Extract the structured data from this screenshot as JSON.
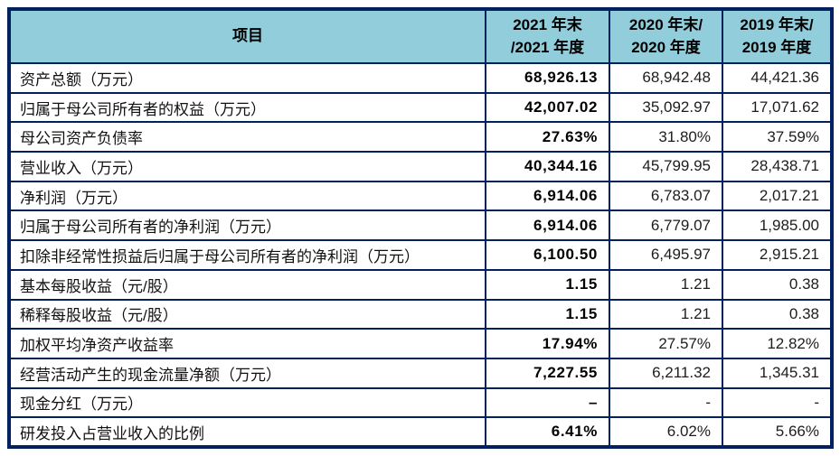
{
  "table": {
    "headers": {
      "item": "项目",
      "col2021": {
        "line1": "2021 年末",
        "line2": "/2021 年度"
      },
      "col2020": {
        "line1": "2020 年末/",
        "line2": "2020 年度"
      },
      "col2019": {
        "line1": "2019 年末/",
        "line2": "2019 年度"
      }
    },
    "rows": [
      {
        "item": "资产总额（万元）",
        "y2021": "68,926.13",
        "y2020": "68,942.48",
        "y2019": "44,421.36"
      },
      {
        "item": "归属于母公司所有者的权益（万元）",
        "y2021": "42,007.02",
        "y2020": "35,092.97",
        "y2019": "17,071.62"
      },
      {
        "item": "母公司资产负债率",
        "y2021": "27.63%",
        "y2020": "31.80%",
        "y2019": "37.59%"
      },
      {
        "item": "营业收入（万元）",
        "y2021": "40,344.16",
        "y2020": "45,799.95",
        "y2019": "28,438.71"
      },
      {
        "item": "净利润（万元）",
        "y2021": "6,914.06",
        "y2020": "6,783.07",
        "y2019": "2,017.21"
      },
      {
        "item": "归属于母公司所有者的净利润（万元）",
        "y2021": "6,914.06",
        "y2020": "6,779.07",
        "y2019": "1,985.00"
      },
      {
        "item": "扣除非经常性损益后归属于母公司所有者的净利润（万元）",
        "y2021": "6,100.50",
        "y2020": "6,495.97",
        "y2019": "2,915.21"
      },
      {
        "item": "基本每股收益（元/股）",
        "y2021": "1.15",
        "y2020": "1.21",
        "y2019": "0.38"
      },
      {
        "item": "稀释每股收益（元/股）",
        "y2021": "1.15",
        "y2020": "1.21",
        "y2019": "0.38"
      },
      {
        "item": "加权平均净资产收益率",
        "y2021": "17.94%",
        "y2020": "27.57%",
        "y2019": "12.82%"
      },
      {
        "item": "经营活动产生的现金流量净额（万元）",
        "y2021": "7,227.55",
        "y2020": "6,211.32",
        "y2019": "1,345.31"
      },
      {
        "item": "现金分红（万元）",
        "y2021": "–",
        "y2020": "-",
        "y2019": "-"
      },
      {
        "item": "研发投入占营业收入的比例",
        "y2021": "6.41%",
        "y2020": "6.02%",
        "y2019": "5.66%"
      }
    ]
  },
  "colors": {
    "border": "#002060",
    "header_bg": "#92CDDC",
    "header_text": "#000000",
    "value_text": "#1d1d1d"
  }
}
